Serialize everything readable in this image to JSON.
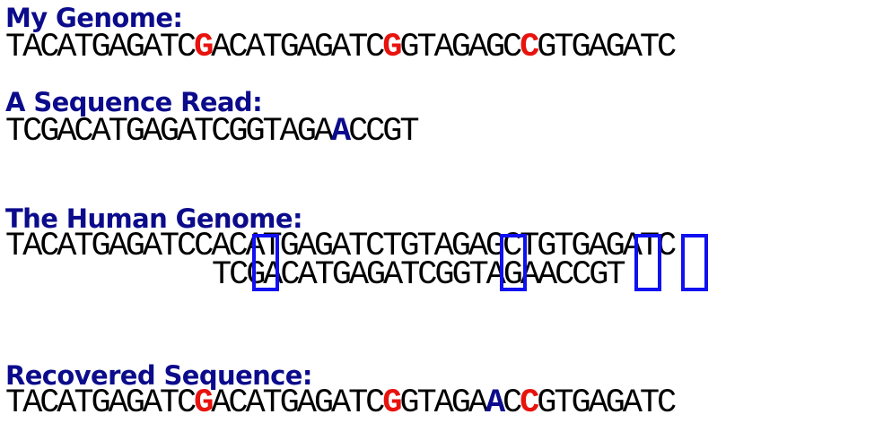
{
  "colors": {
    "heading": "#0b0b8c",
    "mismatch_red": "#e8130e",
    "mismatch_blue": "#0b0b8c",
    "box": "#1010f0",
    "sequence": "#000000"
  },
  "my_genome": {
    "heading": "My Genome:",
    "segments": [
      {
        "text": "TACATGAGATC",
        "style": "normal"
      },
      {
        "text": "G",
        "style": "red"
      },
      {
        "text": "ACATGAGATC",
        "style": "normal"
      },
      {
        "text": "G",
        "style": "red"
      },
      {
        "text": "GTAGAGC",
        "style": "normal"
      },
      {
        "text": "C",
        "style": "red"
      },
      {
        "text": "GTGAGATC",
        "style": "normal"
      }
    ]
  },
  "sequence_read": {
    "heading": "A Sequence Read:",
    "segments": [
      {
        "text": "TCGACATGAGATCGGTAGA",
        "style": "normal"
      },
      {
        "text": "A",
        "style": "blue"
      },
      {
        "text": "CCGT",
        "style": "normal"
      }
    ]
  },
  "human_genome": {
    "heading": "The Human Genome:",
    "reference": "TACATGAGATCCACATGAGATCTGTAGAGCTGTGAGATC",
    "aligned_read": "TCGACATGAGATCGGTAGAACCGT"
  },
  "recovered": {
    "heading": "Recovered Sequence:",
    "segments": [
      {
        "text": "TACATGAGATC",
        "style": "normal"
      },
      {
        "text": "G",
        "style": "red"
      },
      {
        "text": "ACATGAGATC",
        "style": "normal"
      },
      {
        "text": "G",
        "style": "red"
      },
      {
        "text": "GTAGA",
        "style": "normal"
      },
      {
        "text": "A",
        "style": "blue"
      },
      {
        "text": "C",
        "style": "normal"
      },
      {
        "text": "C",
        "style": "red"
      },
      {
        "text": "GTGAGATC",
        "style": "normal"
      }
    ]
  }
}
